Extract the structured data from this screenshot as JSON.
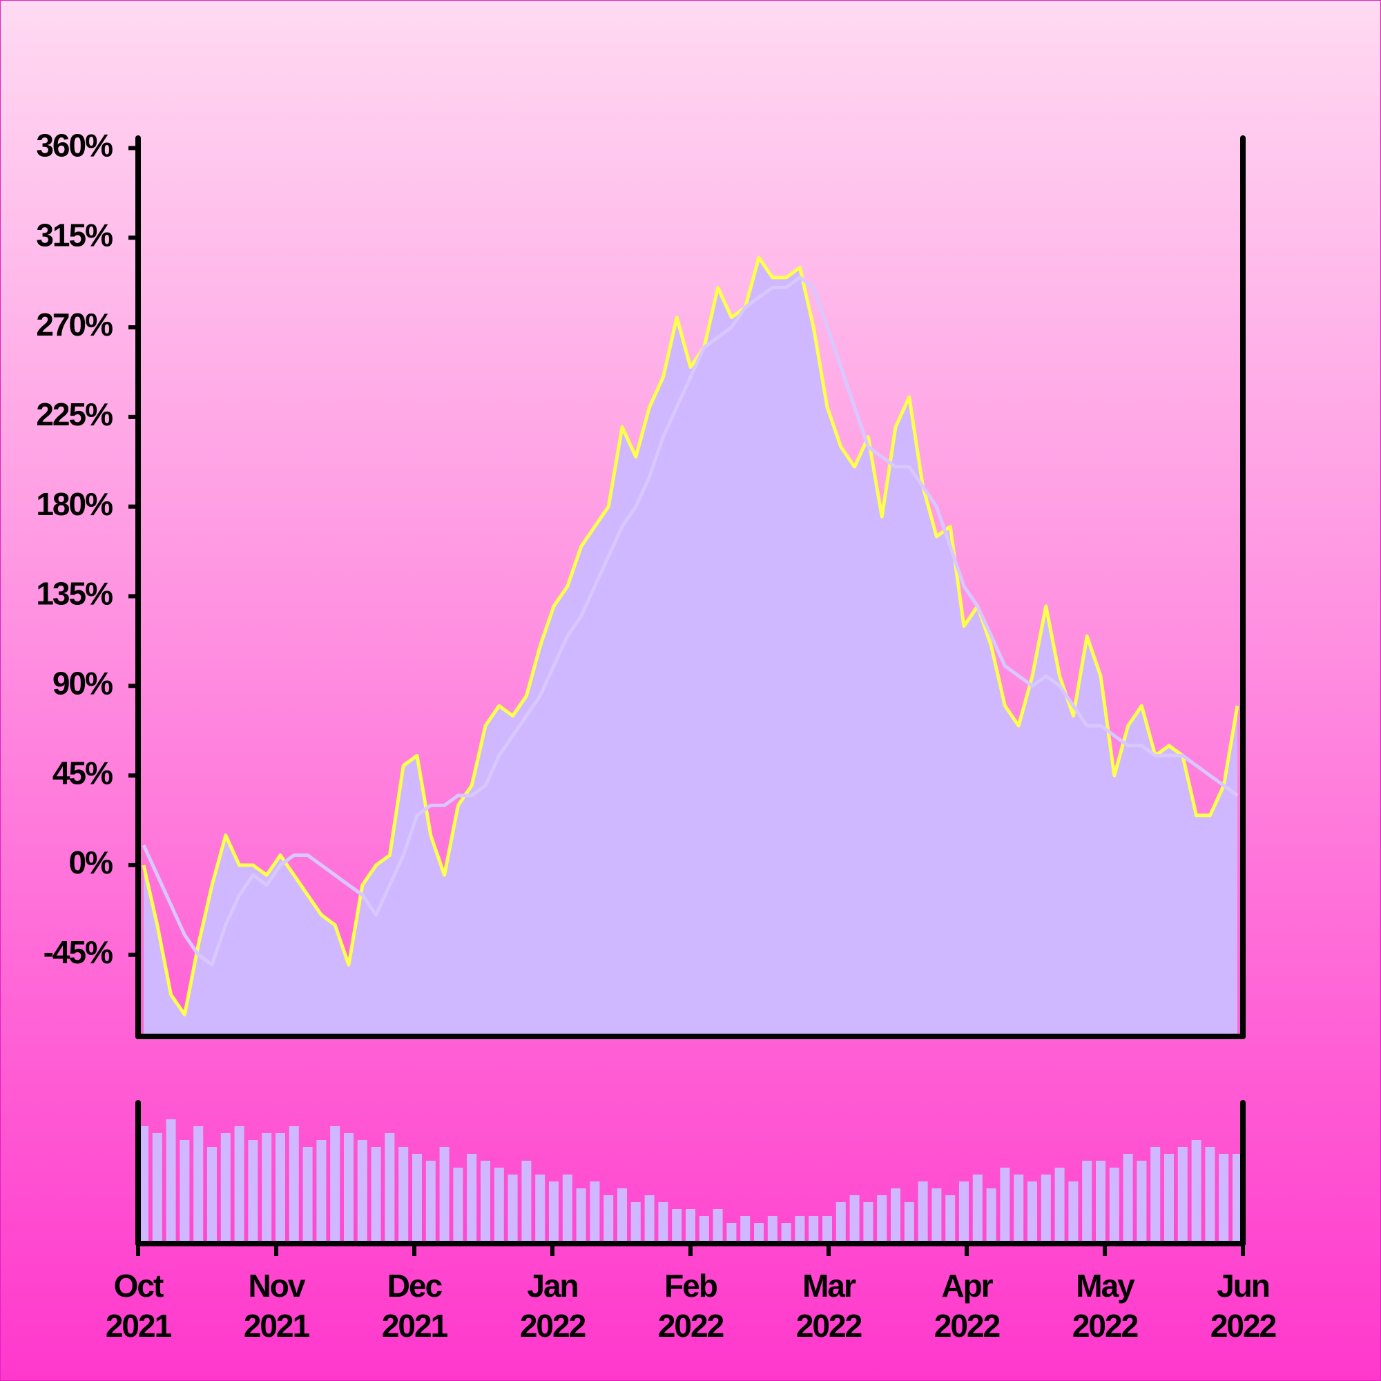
{
  "chart_data": {
    "type": "line",
    "categories": [
      "Oct 2021",
      null,
      null,
      null,
      null,
      null,
      null,
      null,
      null,
      null,
      "Nov 2021",
      null,
      null,
      null,
      null,
      null,
      null,
      null,
      null,
      null,
      "Dec 2021",
      null,
      null,
      null,
      null,
      null,
      null,
      null,
      null,
      null,
      "Jan 2022",
      null,
      null,
      null,
      null,
      null,
      null,
      null,
      null,
      null,
      "Feb 2022",
      null,
      null,
      null,
      null,
      null,
      null,
      null,
      null,
      null,
      "Mar 2022",
      null,
      null,
      null,
      null,
      null,
      null,
      null,
      null,
      null,
      "Apr 2022",
      null,
      null,
      null,
      null,
      null,
      null,
      null,
      null,
      null,
      "May 2022",
      null,
      null,
      null,
      null,
      null,
      null,
      null,
      null,
      null,
      "Jun 2022"
    ],
    "series": [
      {
        "color": "#ffff4d",
        "fill": "#cfb8ff",
        "values": [
          0,
          -30,
          -65,
          -75,
          -40,
          -10,
          15,
          0,
          0,
          -5,
          5,
          -5,
          -15,
          -25,
          -30,
          -50,
          -10,
          0,
          5,
          50,
          55,
          15,
          -5,
          30,
          40,
          70,
          80,
          75,
          85,
          110,
          130,
          140,
          160,
          170,
          180,
          220,
          205,
          230,
          245,
          275,
          250,
          260,
          290,
          275,
          280,
          305,
          295,
          295,
          300,
          270,
          230,
          210,
          200,
          215,
          175,
          220,
          235,
          190,
          165,
          170,
          120,
          130,
          110,
          80,
          70,
          95,
          130,
          95,
          75,
          115,
          95,
          45,
          70,
          80,
          55,
          60,
          55,
          25,
          25,
          40,
          80
        ]
      },
      {
        "color": "#d8c8ff",
        "values": [
          10,
          -5,
          -20,
          -35,
          -45,
          -50,
          -30,
          -15,
          -5,
          -10,
          0,
          5,
          5,
          0,
          -5,
          -10,
          -15,
          -25,
          -10,
          5,
          25,
          30,
          30,
          35,
          35,
          40,
          55,
          65,
          75,
          85,
          100,
          115,
          125,
          140,
          155,
          170,
          180,
          195,
          215,
          230,
          245,
          260,
          265,
          270,
          280,
          285,
          290,
          290,
          295,
          290,
          270,
          250,
          230,
          210,
          205,
          200,
          200,
          190,
          180,
          160,
          140,
          130,
          115,
          100,
          95,
          90,
          95,
          90,
          80,
          70,
          70,
          65,
          60,
          60,
          55,
          55,
          55,
          50,
          45,
          40,
          35
        ]
      }
    ],
    "ylim": [
      -86,
      365
    ],
    "yticks": [
      {
        "value": -45,
        "label": "-45%"
      },
      {
        "value": 0,
        "label": "0%"
      },
      {
        "value": 45,
        "label": "45%"
      },
      {
        "value": 90,
        "label": "90%"
      },
      {
        "value": 135,
        "label": "135%"
      },
      {
        "value": 180,
        "label": "180%"
      },
      {
        "value": 225,
        "label": "225%"
      },
      {
        "value": 270,
        "label": "270%"
      },
      {
        "value": 315,
        "label": "315%"
      },
      {
        "value": 360,
        "label": "360%"
      }
    ],
    "volume": {
      "color": "#cfb8ff",
      "ylim": [
        0,
        100
      ],
      "values": [
        85,
        80,
        90,
        75,
        85,
        70,
        80,
        85,
        75,
        80,
        80,
        85,
        70,
        75,
        85,
        80,
        75,
        70,
        80,
        70,
        65,
        60,
        70,
        55,
        65,
        60,
        55,
        50,
        60,
        50,
        45,
        50,
        40,
        45,
        35,
        40,
        30,
        35,
        30,
        25,
        25,
        20,
        25,
        15,
        20,
        15,
        20,
        15,
        20,
        20,
        20,
        30,
        35,
        30,
        35,
        40,
        30,
        45,
        40,
        35,
        45,
        50,
        40,
        55,
        50,
        45,
        50,
        55,
        45,
        60,
        60,
        55,
        65,
        60,
        70,
        65,
        70,
        75,
        70,
        65,
        65
      ]
    }
  }
}
